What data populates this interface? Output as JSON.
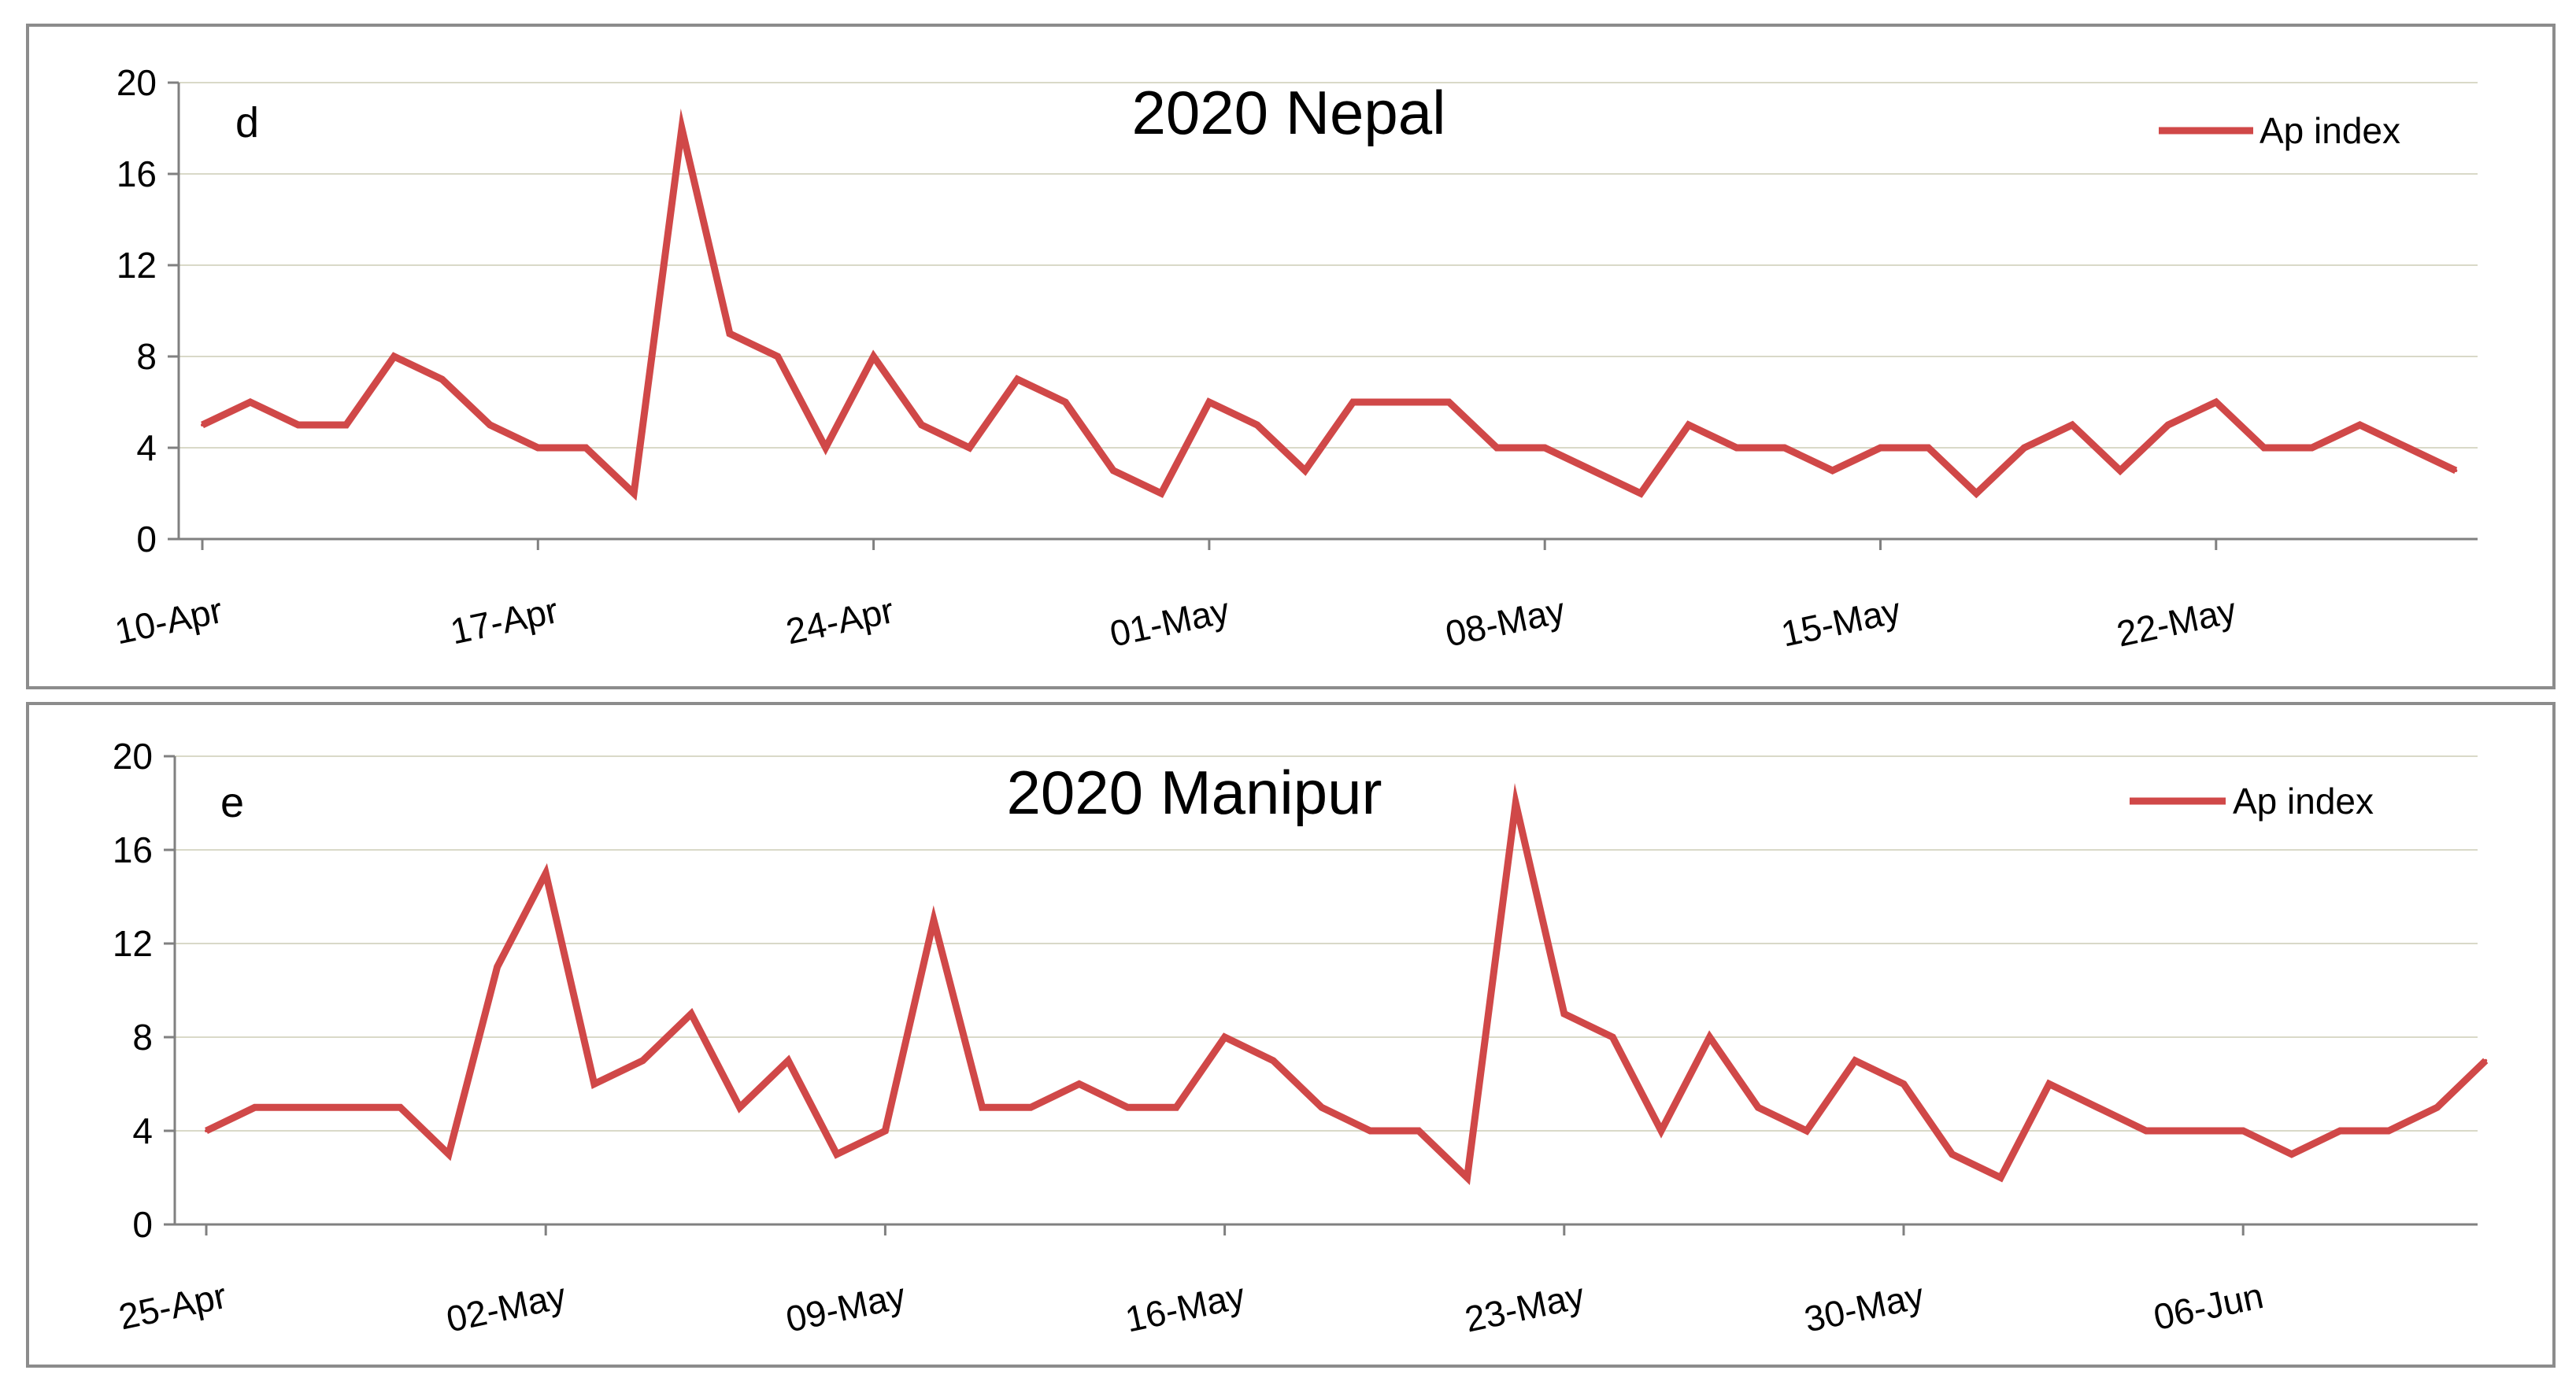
{
  "chart_data": [
    {
      "type": "line",
      "panel_letter": "d",
      "title": "2020 Nepal",
      "xlabel": "",
      "ylabel": "",
      "ylim": [
        0,
        20
      ],
      "yticks": [
        0,
        4,
        8,
        12,
        16,
        20
      ],
      "x_start": "10-Apr",
      "x_end": "28-May",
      "xticks": [
        "10-Apr",
        "17-Apr",
        "24-Apr",
        "01-May",
        "08-May",
        "15-May",
        "22-May"
      ],
      "grid": true,
      "legend_position": "top-right",
      "color": "#d04848",
      "series": [
        {
          "name": "Ap index",
          "values": [
            5,
            6,
            5,
            5,
            8,
            7,
            5,
            4,
            4,
            2,
            18,
            9,
            8,
            4,
            8,
            5,
            4,
            7,
            6,
            3,
            2,
            6,
            5,
            3,
            6,
            6,
            6,
            4,
            4,
            3,
            2,
            5,
            4,
            4,
            3,
            4,
            4,
            2,
            4,
            5,
            3,
            5,
            6,
            4,
            4,
            5,
            4,
            3
          ]
        }
      ]
    },
    {
      "type": "line",
      "panel_letter": "e",
      "title": "2020 Manipur",
      "xlabel": "",
      "ylabel": "",
      "ylim": [
        0,
        20
      ],
      "yticks": [
        0,
        4,
        8,
        12,
        16,
        20
      ],
      "x_start": "25-Apr",
      "x_end": "11-Jun",
      "xticks": [
        "25-Apr",
        "02-May",
        "09-May",
        "16-May",
        "23-May",
        "30-May",
        "06-Jun"
      ],
      "grid": true,
      "legend_position": "top-right",
      "color": "#d04848",
      "series": [
        {
          "name": "Ap index",
          "values": [
            4,
            5,
            5,
            5,
            5,
            3,
            11,
            15,
            6,
            7,
            9,
            5,
            7,
            3,
            4,
            13,
            5,
            5,
            6,
            5,
            5,
            8,
            7,
            5,
            4,
            4,
            2,
            18,
            9,
            8,
            4,
            8,
            5,
            4,
            7,
            6,
            3,
            2,
            6,
            5,
            4,
            4,
            4,
            3,
            4,
            4,
            5,
            7
          ]
        }
      ]
    }
  ]
}
